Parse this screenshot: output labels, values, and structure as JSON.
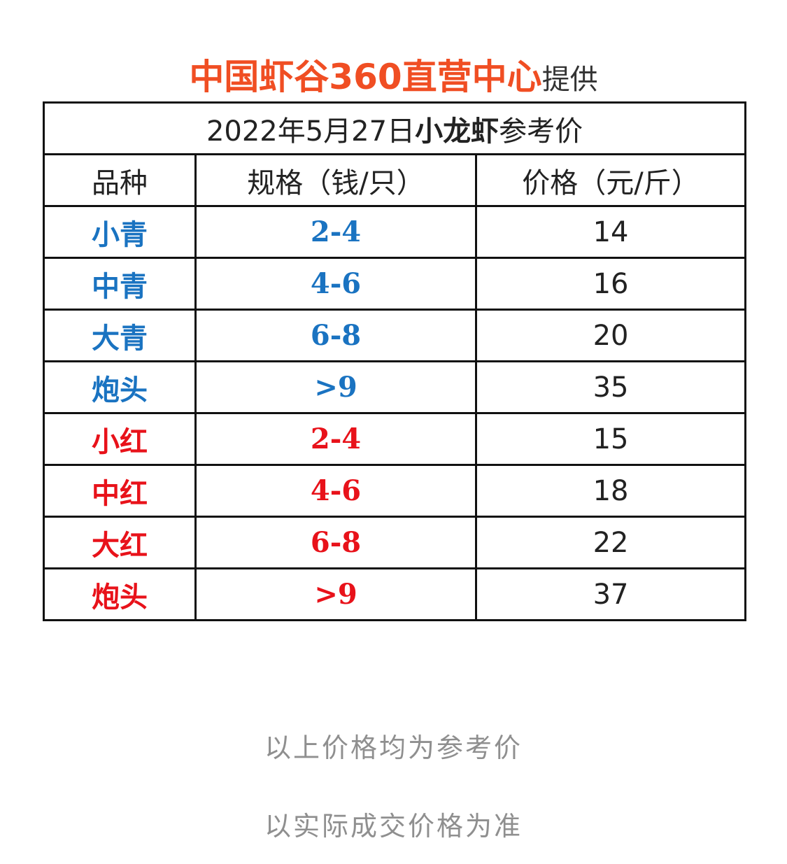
{
  "header": {
    "title": "中国虾谷360直营中心",
    "suffix": "提供"
  },
  "table": {
    "caption": {
      "date": "2022年5月27日",
      "highlight": "小龙虾",
      "tail": "参考价"
    },
    "columns": [
      "品种",
      "规格（钱/只）",
      "价格（元/斤）"
    ],
    "rows": [
      {
        "variety": "小青",
        "spec": "2-4",
        "price": "14",
        "color": "#1a73c1"
      },
      {
        "variety": "中青",
        "spec": "4-6",
        "price": "16",
        "color": "#1a73c1"
      },
      {
        "variety": "大青",
        "spec": "6-8",
        "price": "20",
        "color": "#1a73c1"
      },
      {
        "variety": "炮头",
        "spec": ">9",
        "price": "35",
        "color": "#1a73c1"
      },
      {
        "variety": "小红",
        "spec": "2-4",
        "price": "15",
        "color": "#e8121a"
      },
      {
        "variety": "中红",
        "spec": "4-6",
        "price": "18",
        "color": "#e8121a"
      },
      {
        "variety": "大红",
        "spec": "6-8",
        "price": "22",
        "color": "#e8121a"
      },
      {
        "variety": "炮头",
        "spec": ">9",
        "price": "37",
        "color": "#e8121a"
      }
    ]
  },
  "footer": {
    "line1": "以上价格均为参考价",
    "line2": "以实际成交价格为准"
  }
}
